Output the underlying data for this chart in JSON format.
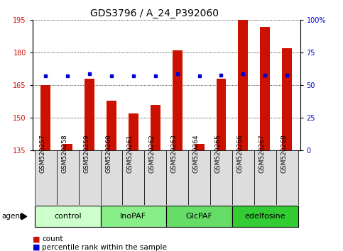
{
  "title": "GDS3796 / A_24_P392060",
  "samples": [
    "GSM520257",
    "GSM520258",
    "GSM520259",
    "GSM520260",
    "GSM520261",
    "GSM520262",
    "GSM520263",
    "GSM520264",
    "GSM520265",
    "GSM520266",
    "GSM520267",
    "GSM520268"
  ],
  "counts": [
    165,
    138,
    168,
    158,
    152,
    156,
    181,
    138,
    168,
    195,
    192,
    182
  ],
  "percentiles": [
    57,
    57,
    59,
    57,
    57,
    57,
    59,
    57,
    58,
    59,
    58,
    58
  ],
  "groups": [
    {
      "label": "control",
      "start": 0,
      "end": 3,
      "color": "#ccffcc"
    },
    {
      "label": "InoPAF",
      "start": 3,
      "end": 6,
      "color": "#88ee88"
    },
    {
      "label": "GlcPAF",
      "start": 6,
      "end": 9,
      "color": "#66dd66"
    },
    {
      "label": "edelfosine",
      "start": 9,
      "end": 12,
      "color": "#33cc33"
    }
  ],
  "ymin": 135,
  "ymax": 195,
  "yticks": [
    135,
    150,
    165,
    180,
    195
  ],
  "y2min": 0,
  "y2max": 100,
  "y2ticks": [
    0,
    25,
    50,
    75,
    100
  ],
  "bar_color": "#cc1100",
  "dot_color": "#0000cc",
  "bar_width": 0.45,
  "ylabel_color": "#cc1100",
  "ylabel2_color": "#0000cc",
  "background_color": "#ffffff",
  "plot_bg_color": "#ffffff",
  "title_fontsize": 10,
  "tick_fontsize": 7,
  "label_fontsize": 7.5,
  "xtick_fontsize": 6.5,
  "group_fontsize": 8
}
